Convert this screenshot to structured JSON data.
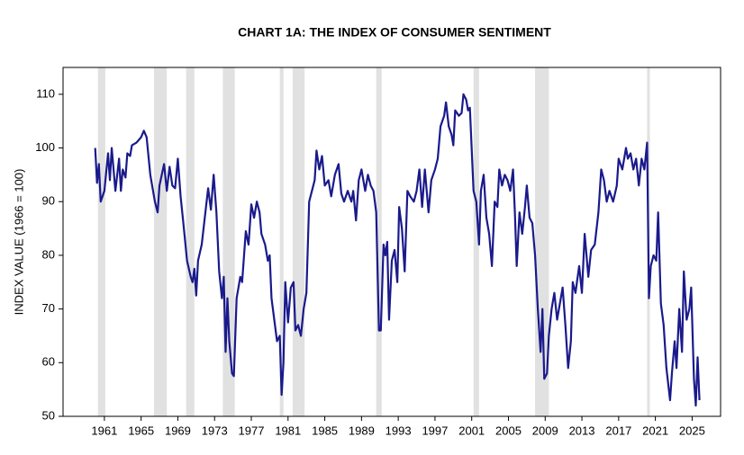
{
  "chart_data": {
    "type": "line",
    "title": "CHART 1A: THE INDEX OF CONSUMER SENTIMENT",
    "y_label": "INDEX VALUE (1966 = 100)",
    "color": "#1a1a8c",
    "shade_color": "#e1e1e1",
    "shaded_periods": [
      [
        1960.3,
        1961.1
      ],
      [
        1966.4,
        1967.8
      ],
      [
        1969.9,
        1970.8
      ],
      [
        1973.9,
        1975.2
      ],
      [
        1980.1,
        1980.5
      ],
      [
        1981.5,
        1982.8
      ],
      [
        1990.6,
        1991.2
      ],
      [
        2001.2,
        2001.8
      ],
      [
        2007.9,
        2009.4
      ],
      [
        2020.1,
        2020.4
      ]
    ],
    "x": [
      1960,
      1960.2,
      1960.4,
      1960.6,
      1961,
      1961.4,
      1961.6,
      1961.8,
      1962.2,
      1962.6,
      1962.8,
      1963,
      1963.3,
      1963.5,
      1963.8,
      1964,
      1964.5,
      1965,
      1965.3,
      1965.6,
      1966,
      1966.5,
      1966.8,
      1967,
      1967.5,
      1967.8,
      1968.1,
      1968.4,
      1968.7,
      1969,
      1969.3,
      1969.6,
      1970,
      1970.4,
      1970.6,
      1970.8,
      1971,
      1971.2,
      1971.6,
      1972,
      1972.3,
      1972.6,
      1972.9,
      1973.2,
      1973.5,
      1973.8,
      1974,
      1974.2,
      1974.4,
      1974.6,
      1974.9,
      1975.1,
      1975.4,
      1975.8,
      1976,
      1976.4,
      1976.7,
      1977,
      1977.3,
      1977.6,
      1977.9,
      1978.1,
      1978.5,
      1978.8,
      1979,
      1979.2,
      1979.5,
      1979.8,
      1980.1,
      1980.3,
      1980.5,
      1980.7,
      1981,
      1981.3,
      1981.6,
      1981.8,
      1982.1,
      1982.4,
      1982.7,
      1983,
      1983.3,
      1983.6,
      1983.9,
      1984.1,
      1984.4,
      1984.7,
      1985,
      1985.4,
      1985.7,
      1986.1,
      1986.5,
      1986.8,
      1987.1,
      1987.5,
      1987.9,
      1988.1,
      1988.4,
      1988.7,
      1989,
      1989.4,
      1989.7,
      1990,
      1990.3,
      1990.6,
      1990.9,
      1991.1,
      1991.4,
      1991.6,
      1991.8,
      1992,
      1992.3,
      1992.6,
      1992.9,
      1993.1,
      1993.4,
      1993.7,
      1994,
      1994.3,
      1994.7,
      1995,
      1995.3,
      1995.6,
      1995.9,
      1996.3,
      1996.6,
      1997,
      1997.3,
      1997.6,
      1998,
      1998.2,
      1998.5,
      1998.8,
      1999,
      1999.2,
      1999.6,
      1999.9,
      2000.1,
      2000.4,
      2000.6,
      2000.8,
      2001.2,
      2001.5,
      2001.8,
      2002,
      2002.3,
      2002.6,
      2002.9,
      2003.2,
      2003.5,
      2003.8,
      2004,
      2004.3,
      2004.6,
      2004.9,
      2005.2,
      2005.5,
      2005.7,
      2005.9,
      2006.2,
      2006.5,
      2006.8,
      2007,
      2007.3,
      2007.6,
      2007.9,
      2008.2,
      2008.5,
      2008.7,
      2008.9,
      2009.2,
      2009.4,
      2009.7,
      2010,
      2010.3,
      2010.6,
      2010.9,
      2011.2,
      2011.5,
      2011.8,
      2012,
      2012.3,
      2012.7,
      2013,
      2013.3,
      2013.7,
      2014,
      2014.4,
      2014.8,
      2015.1,
      2015.4,
      2015.7,
      2016,
      2016.4,
      2016.8,
      2017,
      2017.4,
      2017.8,
      2018,
      2018.3,
      2018.6,
      2018.9,
      2019.2,
      2019.5,
      2019.8,
      2020.1,
      2020.3,
      2020.5,
      2020.8,
      2021.1,
      2021.3,
      2021.6,
      2021.9,
      2022.2,
      2022.6,
      2022.8,
      2023.1,
      2023.3,
      2023.6,
      2023.9,
      2024.1,
      2024.4,
      2024.7,
      2024.9,
      2025.2,
      2025.4,
      2025.6,
      2025.8
    ],
    "values": [
      100,
      93.5,
      97,
      90,
      92,
      99,
      94,
      100,
      92,
      98,
      92,
      96,
      94.5,
      99,
      98.5,
      100.5,
      101,
      102,
      103.2,
      102,
      95,
      90,
      88,
      93,
      97,
      92,
      96.5,
      93,
      92.5,
      98,
      91,
      86,
      79,
      76,
      75,
      77.5,
      72.5,
      79,
      82,
      88,
      92.5,
      88.5,
      95,
      88,
      77,
      72,
      76,
      62,
      72,
      64,
      58,
      57.5,
      72,
      76,
      75,
      84.5,
      82,
      89.5,
      87,
      90,
      88,
      84,
      82,
      79,
      80,
      72,
      68,
      64,
      65,
      54,
      60,
      75,
      67.5,
      74,
      75,
      66,
      67,
      65,
      70,
      73,
      90,
      92,
      94,
      99.5,
      96,
      98.5,
      93,
      94,
      91,
      95,
      97,
      91.5,
      90,
      92,
      90,
      92,
      86.5,
      94,
      96,
      92,
      95,
      93,
      92,
      88,
      66,
      66,
      82,
      80,
      82.5,
      68,
      79,
      81,
      75,
      89,
      85,
      77,
      92,
      91,
      90,
      92,
      96,
      89,
      96,
      88,
      94,
      96,
      98,
      104,
      106,
      108.5,
      104,
      102.5,
      100.5,
      107,
      106,
      106.5,
      110,
      109,
      107,
      107.5,
      92,
      90,
      82,
      92,
      95,
      87,
      84,
      78,
      90,
      89,
      96,
      93,
      95,
      94,
      92,
      96,
      88,
      78,
      88,
      84,
      89,
      93,
      87,
      86,
      80,
      70,
      62,
      70,
      57,
      58,
      65,
      70,
      73,
      68,
      71,
      74,
      67,
      59,
      64,
      75,
      73,
      78,
      73,
      84,
      76,
      81,
      82,
      88,
      96,
      94,
      90,
      92,
      90,
      93,
      98,
      96,
      100,
      98,
      99,
      96,
      98,
      93,
      98,
      96,
      101,
      72,
      78,
      80,
      79,
      88,
      71,
      67,
      59,
      53,
      58,
      64,
      59,
      70,
      62,
      77,
      68,
      70,
      74,
      57,
      52,
      61,
      53
    ],
    "xlim": [
      1956.5,
      2028.1
    ],
    "xticks": [
      1961,
      1965,
      1969,
      1973,
      1977,
      1981,
      1985,
      1989,
      1993,
      1997,
      2001,
      2005,
      2009,
      2013,
      2017,
      2021,
      2025
    ],
    "ylim": [
      50,
      115
    ],
    "yticks": [
      50,
      60,
      70,
      80,
      90,
      100,
      110
    ]
  }
}
